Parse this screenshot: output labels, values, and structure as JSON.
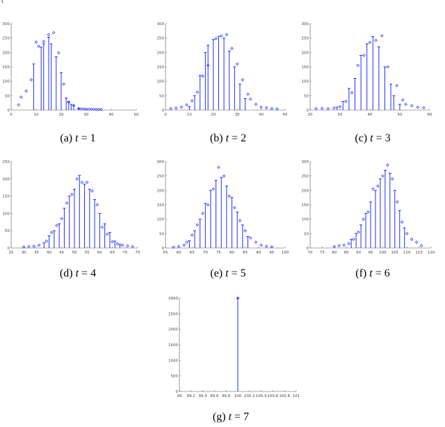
{
  "corner_mark": "t",
  "colors": {
    "stem": "#1f2bff",
    "marker": "#1f2bff",
    "axis": "#555555"
  },
  "chart_data": [
    {
      "type": "stem",
      "caption": {
        "letter": "(a)",
        "var": "t",
        "eq": " = 1"
      },
      "ylim": [
        0,
        300
      ],
      "yticks": [
        "0",
        "50",
        "100",
        "150",
        "200",
        "250",
        "300"
      ],
      "xlim": [
        0,
        50
      ],
      "xticks": [
        "0",
        "10",
        "20",
        "30",
        "40",
        "50"
      ],
      "stems": [
        [
          9,
          160
        ],
        [
          12,
          218
        ],
        [
          13,
          230
        ],
        [
          15,
          253
        ],
        [
          16,
          230
        ],
        [
          18,
          185
        ],
        [
          20,
          130
        ],
        [
          22,
          42
        ],
        [
          23,
          30
        ],
        [
          24,
          20
        ],
        [
          25,
          15
        ],
        [
          27,
          5
        ]
      ],
      "points": [
        [
          3,
          18
        ],
        [
          4,
          45
        ],
        [
          6,
          66
        ],
        [
          8,
          105
        ],
        [
          10,
          236
        ],
        [
          11,
          222
        ],
        [
          13,
          238
        ],
        [
          15,
          262
        ],
        [
          17,
          269
        ],
        [
          19,
          199
        ],
        [
          21,
          90
        ],
        [
          23,
          27
        ],
        [
          25,
          16
        ],
        [
          27,
          5
        ],
        [
          28,
          4
        ],
        [
          29,
          4
        ],
        [
          30,
          3
        ],
        [
          31,
          3
        ],
        [
          32,
          3
        ],
        [
          33,
          3
        ],
        [
          34,
          2
        ],
        [
          35,
          2
        ],
        [
          36,
          2
        ]
      ]
    },
    {
      "type": "stem",
      "caption": {
        "letter": "(b)",
        "var": "t",
        "eq": " = 2"
      },
      "ylim": [
        0,
        300
      ],
      "yticks": [
        "0",
        "50",
        "100",
        "150",
        "200",
        "250",
        "300"
      ],
      "xlim": [
        0,
        45
      ],
      "xticks": [
        "0",
        "10",
        "20",
        "30",
        "40",
        "45"
      ],
      "stems": [
        [
          9,
          12
        ],
        [
          11,
          50
        ],
        [
          13,
          120
        ],
        [
          15,
          200
        ],
        [
          16,
          225
        ],
        [
          18,
          245
        ],
        [
          20,
          256
        ],
        [
          22,
          250
        ],
        [
          24,
          205
        ],
        [
          26,
          150
        ],
        [
          28,
          90
        ],
        [
          30,
          40
        ]
      ],
      "points": [
        [
          2,
          5
        ],
        [
          4,
          7
        ],
        [
          6,
          10
        ],
        [
          8,
          18
        ],
        [
          10,
          32
        ],
        [
          12,
          62
        ],
        [
          14,
          118
        ],
        [
          16,
          155
        ],
        [
          19,
          248
        ],
        [
          21,
          258
        ],
        [
          23,
          262
        ],
        [
          25,
          214
        ],
        [
          27,
          160
        ],
        [
          29,
          105
        ],
        [
          31,
          55
        ],
        [
          32,
          38
        ],
        [
          34,
          20
        ],
        [
          36,
          10
        ],
        [
          38,
          8
        ],
        [
          40,
          5
        ],
        [
          42,
          4
        ]
      ]
    },
    {
      "type": "stem",
      "caption": {
        "letter": "(c)",
        "var": "t",
        "eq": " = 3"
      },
      "ylim": [
        0,
        300
      ],
      "yticks": [
        "0",
        "50",
        "100",
        "150",
        "200",
        "250",
        "300"
      ],
      "xlim": [
        20,
        60
      ],
      "xticks": [
        "20",
        "30",
        "40",
        "50",
        "60"
      ],
      "stems": [
        [
          29,
          10
        ],
        [
          31,
          30
        ],
        [
          33,
          75
        ],
        [
          35,
          110
        ],
        [
          37,
          190
        ],
        [
          39,
          230
        ],
        [
          41,
          255
        ],
        [
          43,
          220
        ],
        [
          45,
          150
        ],
        [
          47,
          90
        ],
        [
          48,
          50
        ],
        [
          50,
          20
        ]
      ],
      "points": [
        [
          22,
          5
        ],
        [
          24,
          6
        ],
        [
          26,
          5
        ],
        [
          28,
          7
        ],
        [
          30,
          12
        ],
        [
          32,
          30
        ],
        [
          34,
          60
        ],
        [
          36,
          155
        ],
        [
          38,
          190
        ],
        [
          40,
          235
        ],
        [
          42,
          242
        ],
        [
          44,
          258
        ],
        [
          46,
          150
        ],
        [
          49,
          85
        ],
        [
          51,
          35
        ],
        [
          52,
          20
        ],
        [
          54,
          15
        ],
        [
          56,
          10
        ],
        [
          58,
          8
        ]
      ]
    },
    {
      "type": "stem",
      "caption": {
        "letter": "(d)",
        "var": "t",
        "eq": " = 4"
      },
      "ylim": [
        0,
        250
      ],
      "yticks": [
        "0",
        "50",
        "100",
        "150",
        "200",
        "250"
      ],
      "xlim": [
        25,
        75
      ],
      "xticks": [
        "25",
        "30",
        "35",
        "40",
        "45",
        "50",
        "55",
        "60",
        "65",
        "70",
        "75"
      ],
      "stems": [
        [
          38,
          15
        ],
        [
          40,
          35
        ],
        [
          42,
          50
        ],
        [
          44,
          70
        ],
        [
          46,
          115
        ],
        [
          48,
          150
        ],
        [
          50,
          170
        ],
        [
          52,
          210
        ],
        [
          54,
          185
        ],
        [
          56,
          170
        ],
        [
          58,
          140
        ],
        [
          60,
          100
        ],
        [
          62,
          70
        ],
        [
          64,
          45
        ],
        [
          66,
          20
        ],
        [
          68,
          10
        ]
      ],
      "points": [
        [
          30,
          3
        ],
        [
          32,
          4
        ],
        [
          34,
          5
        ],
        [
          36,
          8
        ],
        [
          39,
          20
        ],
        [
          41,
          45
        ],
        [
          43,
          65
        ],
        [
          45,
          85
        ],
        [
          47,
          130
        ],
        [
          49,
          155
        ],
        [
          51,
          200
        ],
        [
          53,
          190
        ],
        [
          55,
          190
        ],
        [
          57,
          165
        ],
        [
          59,
          125
        ],
        [
          61,
          60
        ],
        [
          63,
          40
        ],
        [
          65,
          18
        ],
        [
          67,
          12
        ],
        [
          69,
          8
        ],
        [
          71,
          6
        ],
        [
          73,
          4
        ]
      ]
    },
    {
      "type": "stem",
      "caption": {
        "letter": "(e)",
        "var": "t",
        "eq": " = 5"
      },
      "ylim": [
        0,
        300
      ],
      "yticks": [
        "0",
        "50",
        "100",
        "150",
        "200",
        "250",
        "300"
      ],
      "xlim": [
        55,
        100
      ],
      "xticks": [
        "55",
        "60",
        "65",
        "70",
        "75",
        "80",
        "85",
        "90",
        "95",
        "100"
      ],
      "stems": [
        [
          64,
          25
        ],
        [
          66,
          60
        ],
        [
          68,
          100
        ],
        [
          70,
          155
        ],
        [
          72,
          200
        ],
        [
          74,
          235
        ],
        [
          76,
          245
        ],
        [
          78,
          215
        ],
        [
          80,
          175
        ],
        [
          82,
          125
        ],
        [
          84,
          80
        ],
        [
          86,
          40
        ]
      ],
      "points": [
        [
          58,
          3
        ],
        [
          60,
          5
        ],
        [
          62,
          10
        ],
        [
          63,
          20
        ],
        [
          65,
          45
        ],
        [
          67,
          80
        ],
        [
          69,
          120
        ],
        [
          71,
          150
        ],
        [
          73,
          205
        ],
        [
          75,
          280
        ],
        [
          77,
          250
        ],
        [
          79,
          180
        ],
        [
          81,
          140
        ],
        [
          83,
          95
        ],
        [
          85,
          60
        ],
        [
          87,
          35
        ],
        [
          89,
          20
        ],
        [
          91,
          10
        ],
        [
          93,
          6
        ],
        [
          95,
          4
        ]
      ]
    },
    {
      "type": "stem",
      "caption": {
        "letter": "(f)",
        "var": "t",
        "eq": " = 6"
      },
      "ylim": [
        0,
        300
      ],
      "yticks": [
        "0",
        "50",
        "100",
        "150",
        "200",
        "250",
        "300"
      ],
      "xlim": [
        70,
        120
      ],
      "xticks": [
        "70",
        "75",
        "80",
        "85",
        "90",
        "95",
        "100",
        "105",
        "110",
        "115",
        "120"
      ],
      "stems": [
        [
          87,
          30
        ],
        [
          89,
          50
        ],
        [
          91,
          80
        ],
        [
          93,
          120
        ],
        [
          95,
          160
        ],
        [
          97,
          200
        ],
        [
          99,
          240
        ],
        [
          101,
          270
        ],
        [
          103,
          260
        ],
        [
          105,
          200
        ],
        [
          107,
          130
        ],
        [
          109,
          70
        ]
      ],
      "points": [
        [
          80,
          5
        ],
        [
          82,
          8
        ],
        [
          84,
          10
        ],
        [
          86,
          15
        ],
        [
          88,
          30
        ],
        [
          90,
          55
        ],
        [
          92,
          100
        ],
        [
          94,
          125
        ],
        [
          96,
          205
        ],
        [
          98,
          215
        ],
        [
          100,
          250
        ],
        [
          102,
          288
        ],
        [
          104,
          240
        ],
        [
          106,
          160
        ],
        [
          108,
          90
        ],
        [
          110,
          50
        ],
        [
          112,
          30
        ],
        [
          114,
          20
        ],
        [
          116,
          8
        ]
      ]
    },
    {
      "type": "stem",
      "caption": {
        "letter": "(g)",
        "var": "t",
        "eq": " = 7"
      },
      "ylim": [
        0,
        3000
      ],
      "yticks": [
        "0",
        "500",
        "1000",
        "1500",
        "2000",
        "2500",
        "3000"
      ],
      "xlim": [
        99,
        101
      ],
      "xticks": [
        "99",
        "99.2",
        "99.4",
        "99.6",
        "99.8",
        "100",
        "100.2",
        "100.4",
        "100.6",
        "100.8",
        "101"
      ],
      "stems": [
        [
          100,
          3000
        ]
      ],
      "points": [
        [
          100,
          3000
        ]
      ]
    }
  ]
}
